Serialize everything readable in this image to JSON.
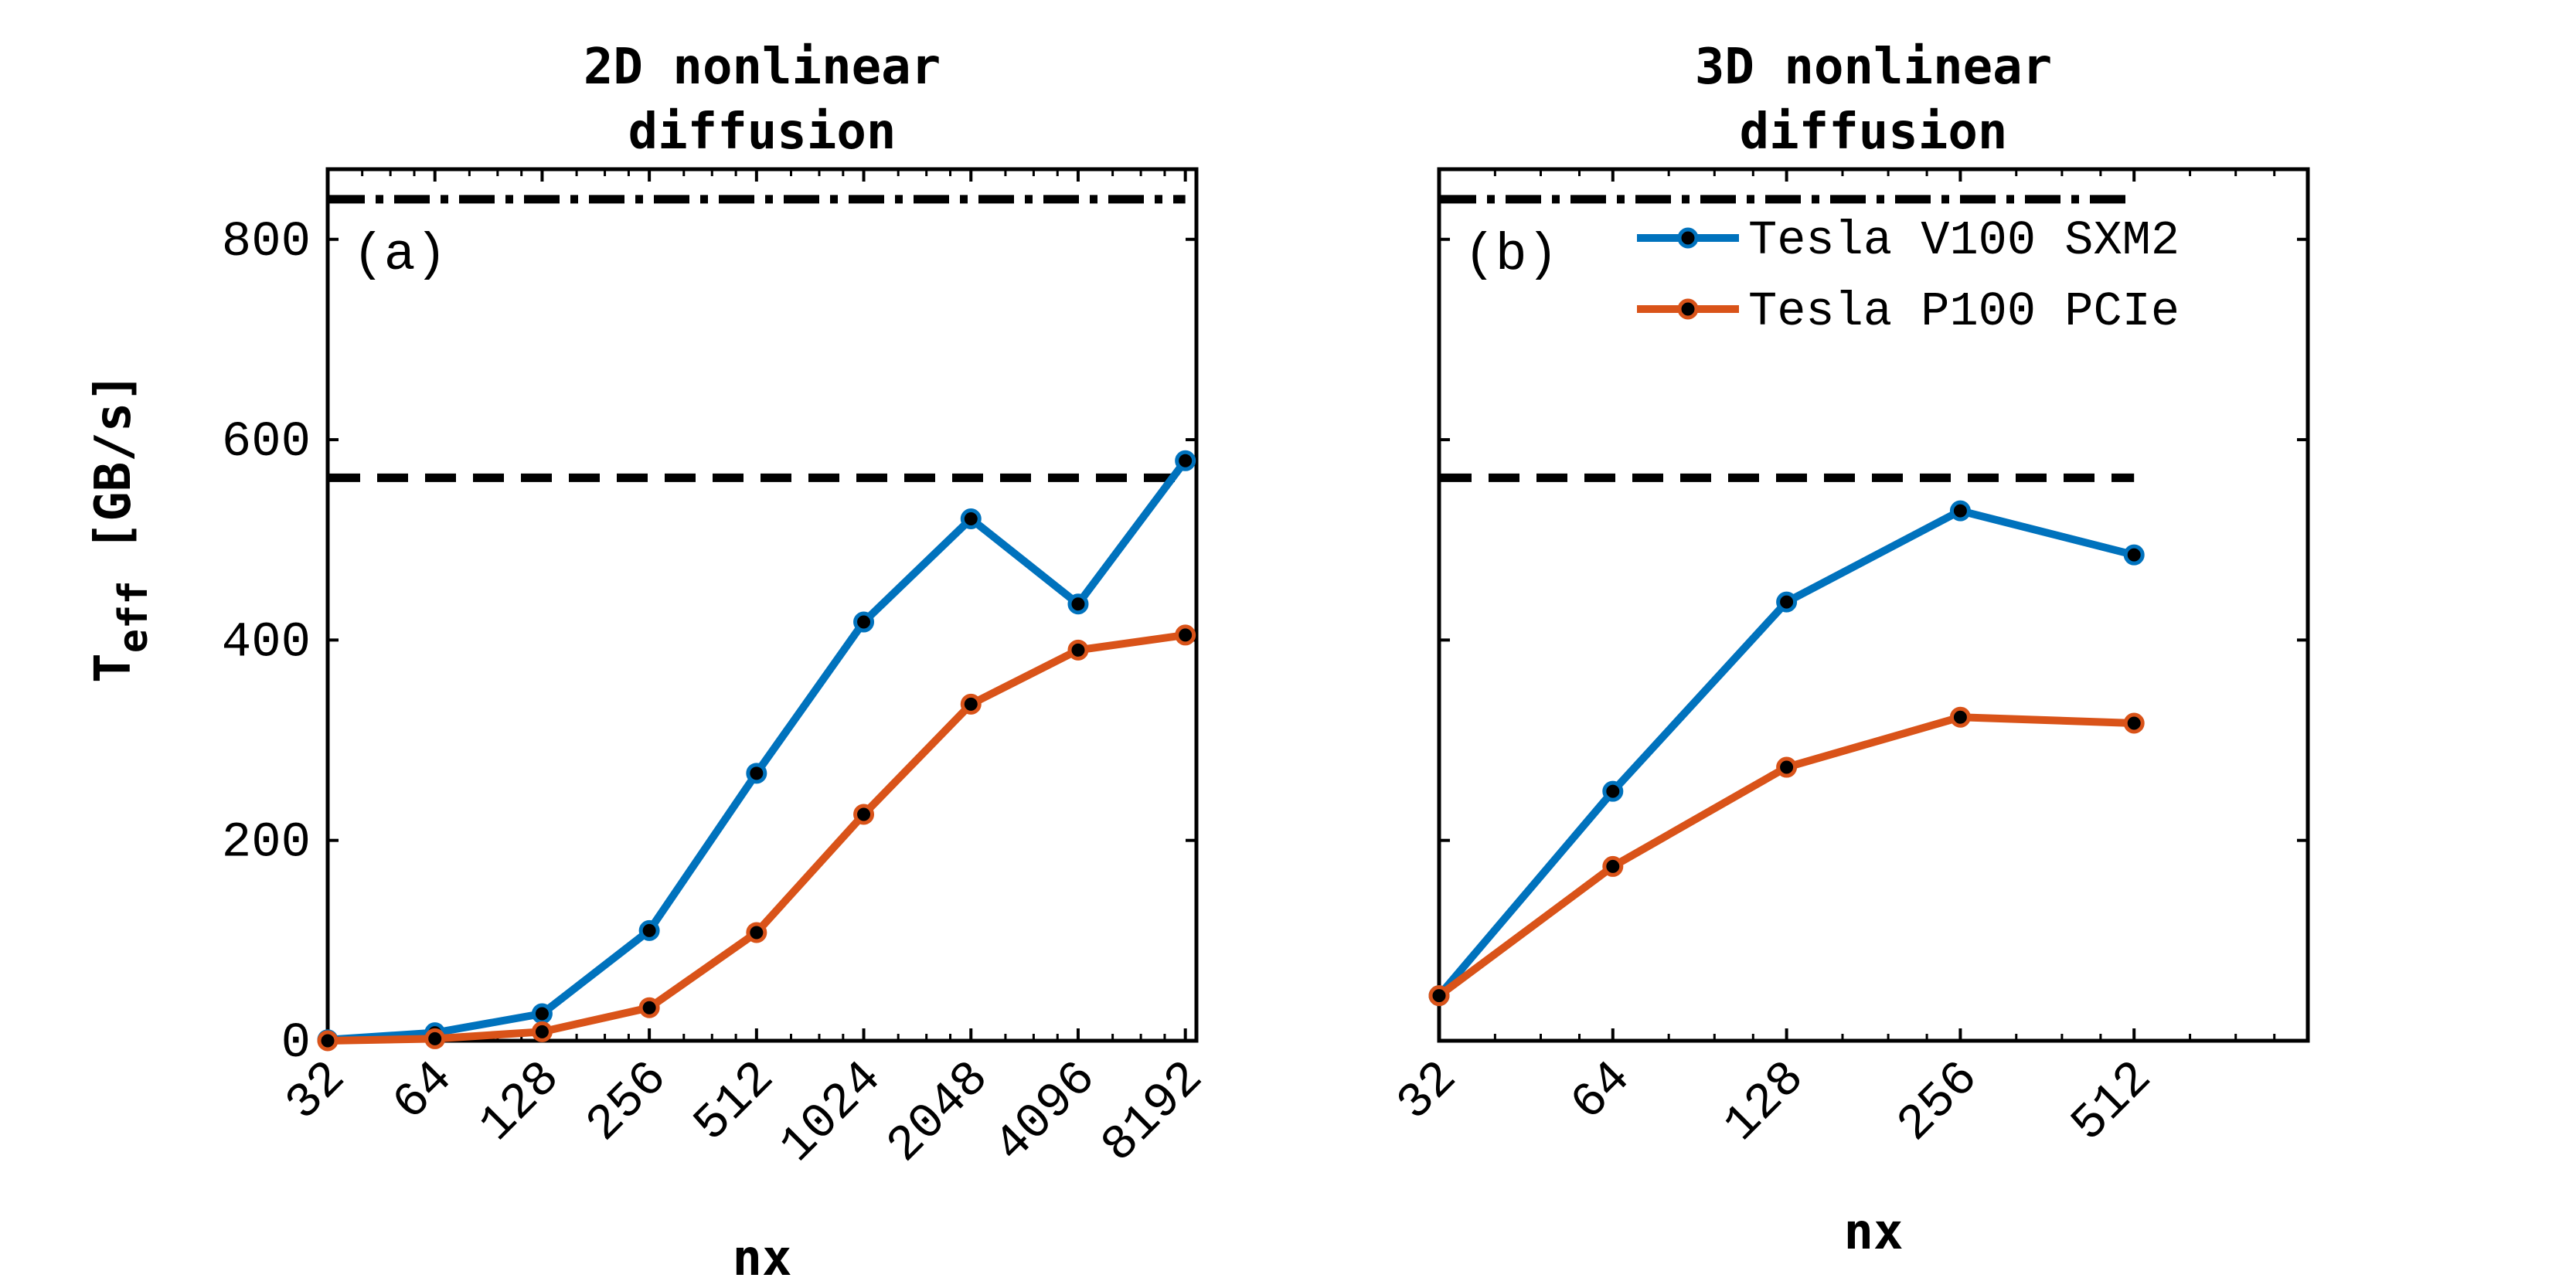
{
  "chart_data": [
    {
      "type": "line",
      "title_lines": [
        "2D nonlinear",
        "diffusion"
      ],
      "panel_label": "(a)",
      "xlabel": "nx",
      "ylabel": "T",
      "ylabel_subscript": "eff",
      "ylabel_unit": "[GB/s]",
      "x_scale": "log2",
      "categories": [
        "32",
        "64",
        "128",
        "256",
        "512",
        "1024",
        "2048",
        "4096",
        "8192"
      ],
      "x": [
        32,
        64,
        128,
        256,
        512,
        1024,
        2048,
        4096,
        8192
      ],
      "xlim": [
        32,
        8800
      ],
      "ylim": [
        0,
        870
      ],
      "yticks": [
        0,
        200,
        400,
        600,
        800
      ],
      "series": [
        {
          "name": "Tesla V100 SXM2",
          "color": "#0072BD",
          "values": [
            1,
            8,
            27,
            110,
            267,
            418,
            521,
            436,
            579
          ]
        },
        {
          "name": "Tesla P100 PCIe",
          "color": "#D95319",
          "values": [
            0,
            2,
            9,
            33,
            108,
            226,
            336,
            390,
            405
          ]
        }
      ],
      "reference_lines": [
        {
          "style": "dash-dot",
          "value": 840,
          "color": "#000000"
        },
        {
          "style": "dashed",
          "value": 562,
          "color": "#000000"
        }
      ],
      "grid": false
    },
    {
      "type": "line",
      "title_lines": [
        "3D nonlinear",
        "diffusion"
      ],
      "panel_label": "(b)",
      "xlabel": "nx",
      "x_scale": "log2",
      "categories": [
        "32",
        "64",
        "128",
        "256",
        "512"
      ],
      "x": [
        32,
        64,
        128,
        256,
        512
      ],
      "xlim": [
        32,
        1024
      ],
      "ylim": [
        0,
        870
      ],
      "yticks": [
        0,
        200,
        400,
        600,
        800
      ],
      "series": [
        {
          "name": "Tesla V100 SXM2",
          "color": "#0072BD",
          "values": [
            45,
            249,
            438,
            529,
            485
          ]
        },
        {
          "name": "Tesla P100 PCIe",
          "color": "#D95319",
          "values": [
            45,
            174,
            273,
            323,
            317
          ]
        }
      ],
      "reference_lines": [
        {
          "style": "dash-dot",
          "value": 840,
          "color": "#000000"
        },
        {
          "style": "dashed",
          "value": 562,
          "color": "#000000"
        }
      ],
      "legend": {
        "position": "top-right",
        "entries": [
          "Tesla V100 SXM2",
          "Tesla P100 PCIe"
        ]
      },
      "grid": false
    }
  ]
}
